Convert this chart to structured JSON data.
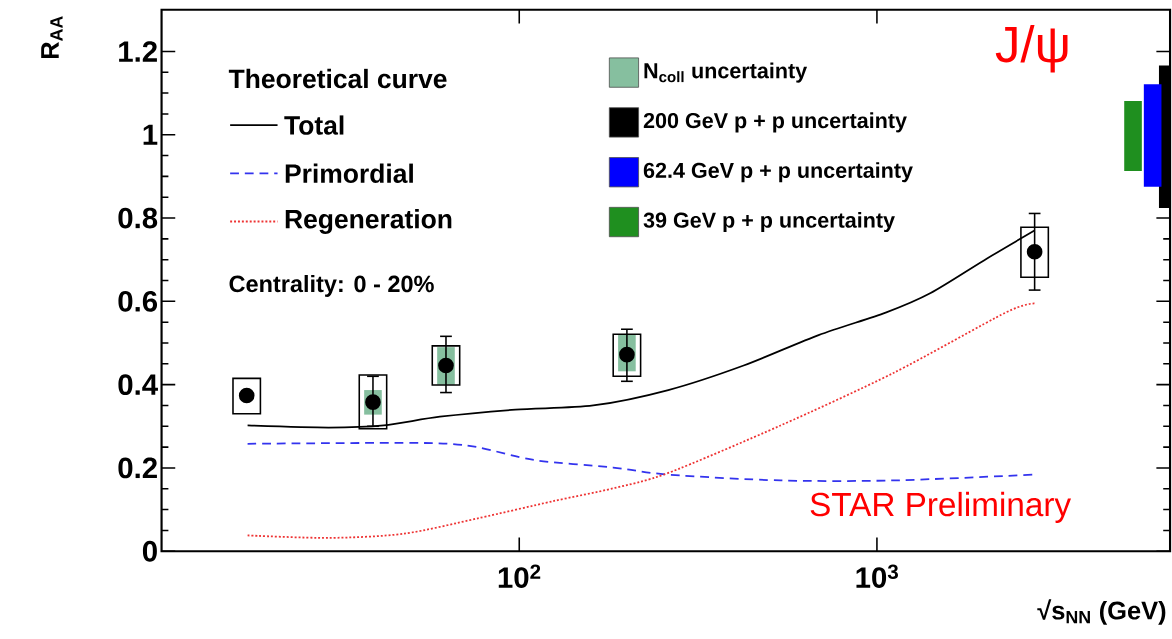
{
  "chart_data": {
    "type": "scatter",
    "xlabel": "√s$_{NN}$ (GeV)",
    "ylabel": "R$_{AA}$",
    "legend_title": "Theoretical curve",
    "xlim": [
      10,
      6600
    ],
    "ylim": [
      0,
      1.3
    ],
    "xticks": [
      {
        "value": 100,
        "label": "10$^{2}$"
      },
      {
        "value": 1000,
        "label": "10$^{3}$"
      }
    ],
    "yticks": [
      0,
      0.2,
      0.4,
      0.6,
      0.8,
      1,
      1.2
    ],
    "log": "x",
    "legend": "top left",
    "annotations": [
      "Centrality: 0 - 20%",
      "J/ψ",
      "STAR Preliminary"
    ],
    "series": [
      {
        "name": "N$_{coll}$ uncertainty",
        "type": "bar",
        "color": "#86bf9f",
        "x": [
          39,
          62.4,
          200
        ],
        "base": [
          0.328,
          0.4,
          0.432
        ],
        "values": [
          0.059,
          0.09,
          0.089
        ]
      },
      {
        "type": "bar",
        "color": "#000000",
        "x": [
          17.3,
          39,
          62.4,
          200,
          2760
        ],
        "base": [
          0.33,
          0.294,
          0.399,
          0.42,
          0.658
        ],
        "values": [
          0.085,
          0.129,
          0.094,
          0.101,
          0.12
        ]
      },
      {
        "name": "200 GeV p + p uncertainty",
        "type": "bar",
        "color": "#000000",
        "x": [
          6500
        ],
        "base": [
          0.824
        ],
        "values": [
          0.342
        ]
      },
      {
        "name": "62.4 GeV p + p uncertainty",
        "type": "bar",
        "color": "#0000ff",
        "x": [
          5900
        ],
        "base": [
          0.875
        ],
        "values": [
          0.246
        ]
      },
      {
        "name": "39 GeV p + p uncertainty",
        "type": "bar",
        "color": "#1f8f1f",
        "x": [
          5200
        ],
        "base": [
          0.913
        ],
        "values": [
          0.168
        ]
      },
      {
        "name": "Total",
        "type": "line",
        "line_style": "solid",
        "color": "#000000",
        "x": [
          17.4,
          29.3,
          41.8,
          60,
          97.6,
          161,
          261,
          424,
          687,
          1058,
          1413,
          2032,
          2757
        ],
        "values": [
          0.302,
          0.297,
          0.302,
          0.323,
          0.34,
          0.35,
          0.387,
          0.446,
          0.519,
          0.573,
          0.62,
          0.703,
          0.77
        ]
      },
      {
        "name": "Primordial",
        "type": "line",
        "line_style": "dashed",
        "color": "#3333ee",
        "x": [
          17.4,
          53,
          75,
          110,
          183,
          261,
          538,
          1112,
          2757
        ],
        "values": [
          0.258,
          0.26,
          0.251,
          0.219,
          0.201,
          0.184,
          0.17,
          0.17,
          0.184
        ]
      },
      {
        "name": "Regeneration",
        "type": "line",
        "line_style": "dotted",
        "color": "#ee3333",
        "x": [
          17.4,
          29.3,
          47.5,
          76.6,
          124,
          183,
          261,
          538,
          1112,
          2290,
          2757
        ],
        "values": [
          0.038,
          0.032,
          0.042,
          0.079,
          0.12,
          0.151,
          0.188,
          0.302,
          0.428,
          0.573,
          0.595
        ]
      },
      {
        "marker": "circle",
        "color": "#000000",
        "x": [
          17.3,
          39,
          62.4,
          200,
          2760
        ],
        "values": [
          0.374,
          0.358,
          0.446,
          0.472,
          0.719
        ],
        "errors": [
          null,
          [
            0.3,
            0.42
          ],
          [
            0.381,
            0.516
          ],
          [
            0.408,
            0.533
          ],
          [
            0.627,
            0.811
          ]
        ]
      }
    ]
  }
}
